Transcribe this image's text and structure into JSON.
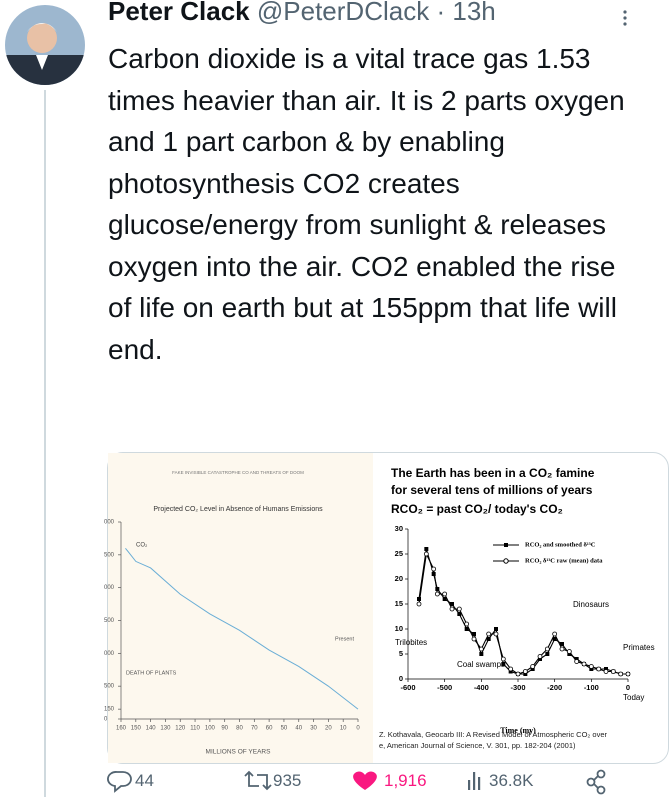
{
  "tweet": {
    "author": {
      "name": "Peter Clack",
      "handle": "@PeterDClack"
    },
    "separator": "·",
    "time": "13h",
    "text": "Carbon dioxide is a vital trace gas 1.53 times heavier than air. It is 2 parts oxygen and 1 part carbon & by enabling photosynthesis CO2 creates glucose/energy from sunlight & releases oxygen into the air. CO2 enabled the rise of life on earth but at 155ppm that life will end.",
    "media": [
      {
        "type": "line",
        "header": "FAKE INVISIBLE CATASTROPHE CO AND THREATS OF DOOM",
        "title": "Projected CO₂ Level in Absence of Humans Emissions",
        "series_label": "CO₂",
        "annotations": [
          "DEATH OF PLANTS",
          "Present"
        ],
        "x_label": "MILLIONS OF YEARS",
        "x": [
          157,
          150,
          140,
          120,
          100,
          80,
          60,
          40,
          20,
          0
        ],
        "values": [
          2600,
          2400,
          2300,
          1900,
          1600,
          1350,
          1050,
          800,
          500,
          150
        ],
        "color": "#6aaed6",
        "xlim": [
          160,
          0
        ],
        "xticks": [
          160,
          150,
          140,
          130,
          120,
          110,
          100,
          90,
          80,
          70,
          60,
          50,
          40,
          30,
          20,
          10,
          0
        ],
        "ylim": [
          0,
          3000
        ],
        "yticks": [
          {
            "value": 3000,
            "label": "000"
          },
          {
            "value": 2500,
            "label": "500"
          },
          {
            "value": 2000,
            "label": "000"
          },
          {
            "value": 1500,
            "label": "500"
          },
          {
            "value": 1000,
            "label": "000"
          },
          {
            "value": 500,
            "label": "500"
          },
          {
            "value": 150,
            "label": "150"
          },
          0
        ]
      },
      {
        "type": "line",
        "title": [
          "The Earth has been in a CO₂ famine",
          "for several tens of millions of years",
          "RCO₂ = past CO₂/ today's CO₂"
        ],
        "annotations": [
          "Trilobites",
          "Coal swamps",
          "Dinosaurs",
          "Primates",
          "Today"
        ],
        "x_label": "Time (my)",
        "x": [
          -570,
          -550,
          -530,
          -520,
          -500,
          -480,
          -460,
          -440,
          -420,
          -400,
          -380,
          -360,
          -340,
          -320,
          -300,
          -280,
          -260,
          -240,
          -220,
          -200,
          -180,
          -160,
          -140,
          -120,
          -100,
          -80,
          -60,
          -40,
          -20,
          0
        ],
        "series": [
          {
            "name": "RCO₂ and smoothed δ¹³C",
            "color": "#000000",
            "marker": "square",
            "values": [
              16,
              26,
              21,
              18,
              16,
              15,
              13,
              10,
              9,
              5,
              8,
              10,
              3,
              1.5,
              1,
              1,
              2,
              4,
              5,
              8,
              7,
              5,
              4,
              3,
              2,
              2,
              2,
              1.5,
              1,
              1
            ]
          },
          {
            "name": "RCO₂ δ¹³C raw (mean) data",
            "color": "#000000",
            "marker": "circle",
            "values": [
              15,
              25,
              22,
              17,
              17,
              14,
              14,
              11,
              8,
              6,
              9,
              9,
              4,
              2,
              1,
              1.5,
              2.5,
              4.5,
              6,
              9,
              6,
              5.5,
              3.5,
              3,
              2.5,
              2,
              1.5,
              1.5,
              1,
              1
            ]
          }
        ],
        "xlim": [
          -600,
          0
        ],
        "xticks": [
          -600,
          -500,
          -400,
          -300,
          -200,
          -100,
          0
        ],
        "ylim": [
          0,
          30
        ],
        "yticks": [
          0,
          5,
          10,
          15,
          20,
          25,
          30
        ],
        "citation": [
          "Z. Kothavala, Geocarb III: A Revised Model of Atmospheric CO₂ over",
          "e, American Journal of Science, V. 301, pp. 182-204 (2001)"
        ]
      }
    ],
    "actions": {
      "replies": "44",
      "retweets": "935",
      "likes": "1,916",
      "views": "36.8K"
    }
  }
}
